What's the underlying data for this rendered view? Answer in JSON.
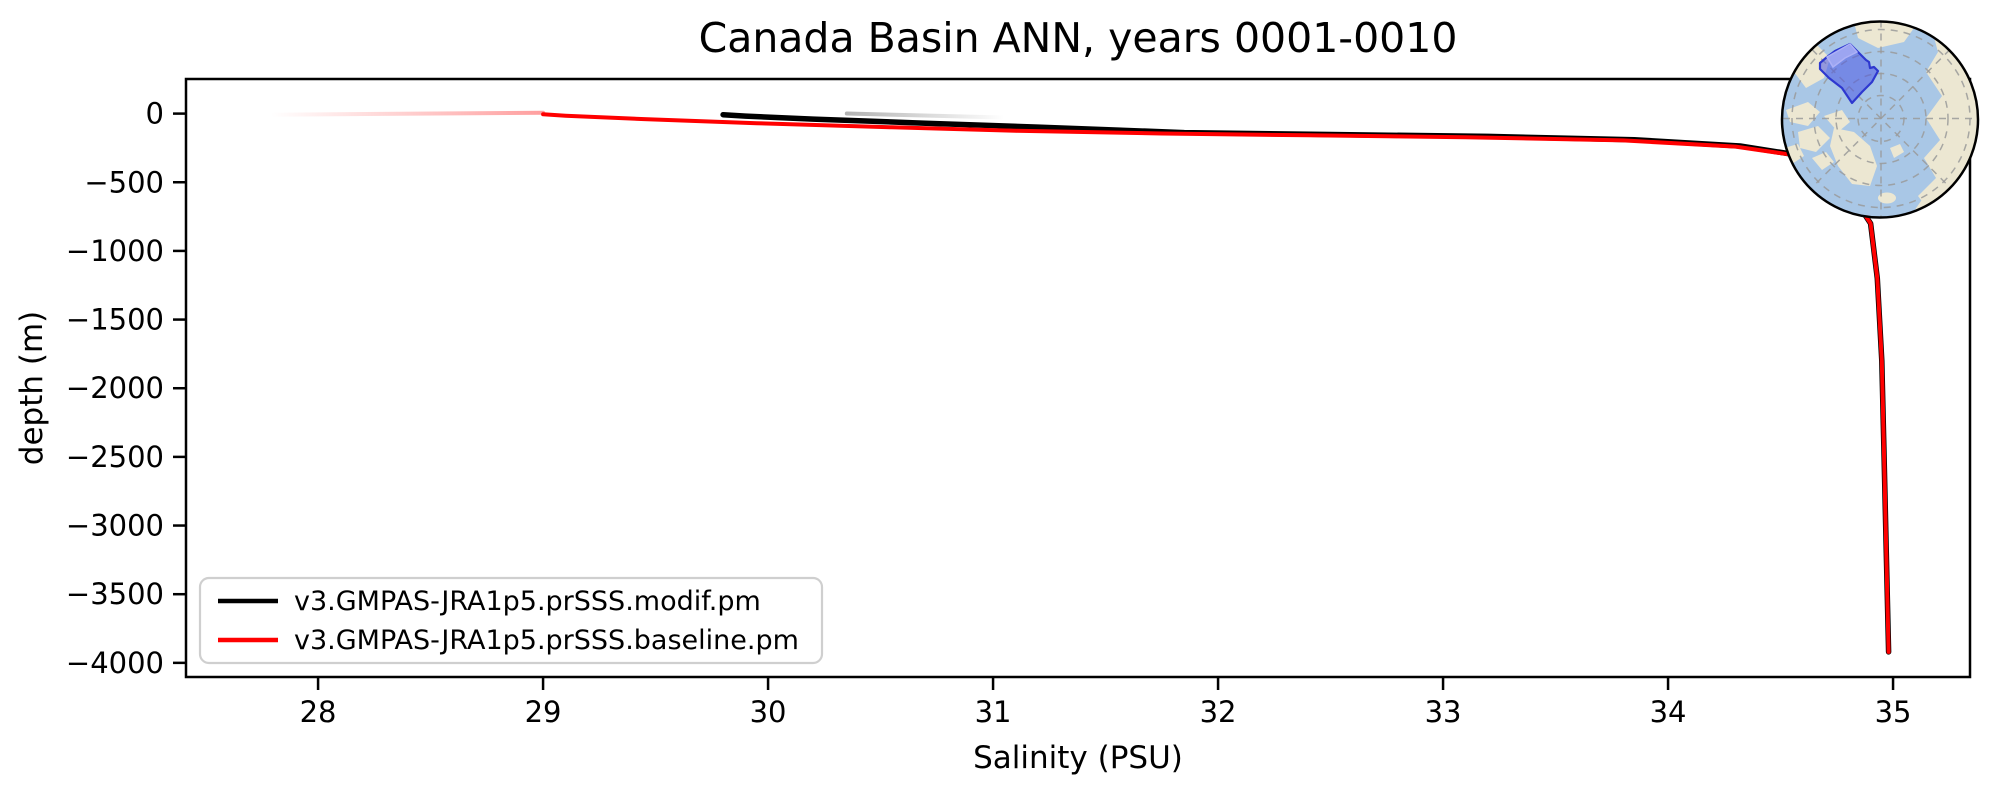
{
  "figure": {
    "background_color": "#ffffff"
  },
  "chart_data": {
    "type": "line",
    "title": "Canada Basin ANN, years 0001-0010",
    "xlabel": "Salinity (PSU)",
    "ylabel": "depth (m)",
    "xlim": [
      27.413,
      35.342
    ],
    "ylim": [
      -4103,
      252
    ],
    "x_ticks": [
      28,
      29,
      30,
      31,
      32,
      33,
      34,
      35
    ],
    "y_ticks": [
      0,
      -500,
      -1000,
      -1500,
      -2000,
      -2500,
      -3000,
      -3500,
      -4000
    ],
    "grid": false,
    "legend_position": "lower left",
    "series": [
      {
        "name": "v3.GMPAS-JRA1p5.prSSS.modif.pm",
        "color": "#000000",
        "line_width": 5.5,
        "points": [
          [
            29.8,
            -8
          ],
          [
            29.9,
            -18
          ],
          [
            30.2,
            -40
          ],
          [
            30.7,
            -70
          ],
          [
            31.2,
            -98
          ],
          [
            31.85,
            -138
          ],
          [
            32.5,
            -152
          ],
          [
            33.2,
            -166
          ],
          [
            33.85,
            -190
          ],
          [
            34.32,
            -236
          ],
          [
            34.56,
            -298
          ],
          [
            34.72,
            -420
          ],
          [
            34.82,
            -600
          ],
          [
            34.9,
            -800
          ],
          [
            34.93,
            -1200
          ],
          [
            34.95,
            -1800
          ],
          [
            34.96,
            -2500
          ],
          [
            34.97,
            -3200
          ],
          [
            34.98,
            -3920
          ]
        ]
      },
      {
        "name": "v3.GMPAS-JRA1p5.prSSS.baseline.pm",
        "color": "#ff0000",
        "line_width": 4,
        "points": [
          [
            29.0,
            -5
          ],
          [
            29.1,
            -15
          ],
          [
            29.45,
            -40
          ],
          [
            29.95,
            -70
          ],
          [
            30.55,
            -100
          ],
          [
            31.1,
            -125
          ],
          [
            31.75,
            -145
          ],
          [
            32.4,
            -158
          ],
          [
            33.1,
            -172
          ],
          [
            33.8,
            -195
          ],
          [
            34.3,
            -240
          ],
          [
            34.55,
            -300
          ],
          [
            34.72,
            -420
          ],
          [
            34.82,
            -600
          ],
          [
            34.9,
            -800
          ],
          [
            34.93,
            -1200
          ],
          [
            34.95,
            -1800
          ],
          [
            34.96,
            -2500
          ],
          [
            34.97,
            -3200
          ],
          [
            34.98,
            -3920
          ]
        ]
      }
    ],
    "surface_range_tails": [
      {
        "series": "v3.GMPAS-JRA1p5.prSSS.baseline.pm",
        "color": "#ff0000",
        "from_salinity": 27.79,
        "to_salinity": 29.0,
        "depth": -8,
        "fade_toward": "left",
        "max_opacity": 0.38
      },
      {
        "series": "v3.GMPAS-JRA1p5.prSSS.modif.pm",
        "color": "#555555",
        "from_salinity": 30.35,
        "to_salinity": 31.05,
        "depth": -14,
        "fade_toward": "right",
        "max_opacity": 0.45
      }
    ],
    "inset_map": {
      "position": "top-right",
      "projection": "north-polar",
      "ocean_color": "#a9c7e6",
      "land_color": "#ece7d2",
      "highlight_fill": "#4d58e4",
      "highlight_outline": "#2e38cf",
      "highlight_patch_light": "#adb1f6"
    }
  }
}
